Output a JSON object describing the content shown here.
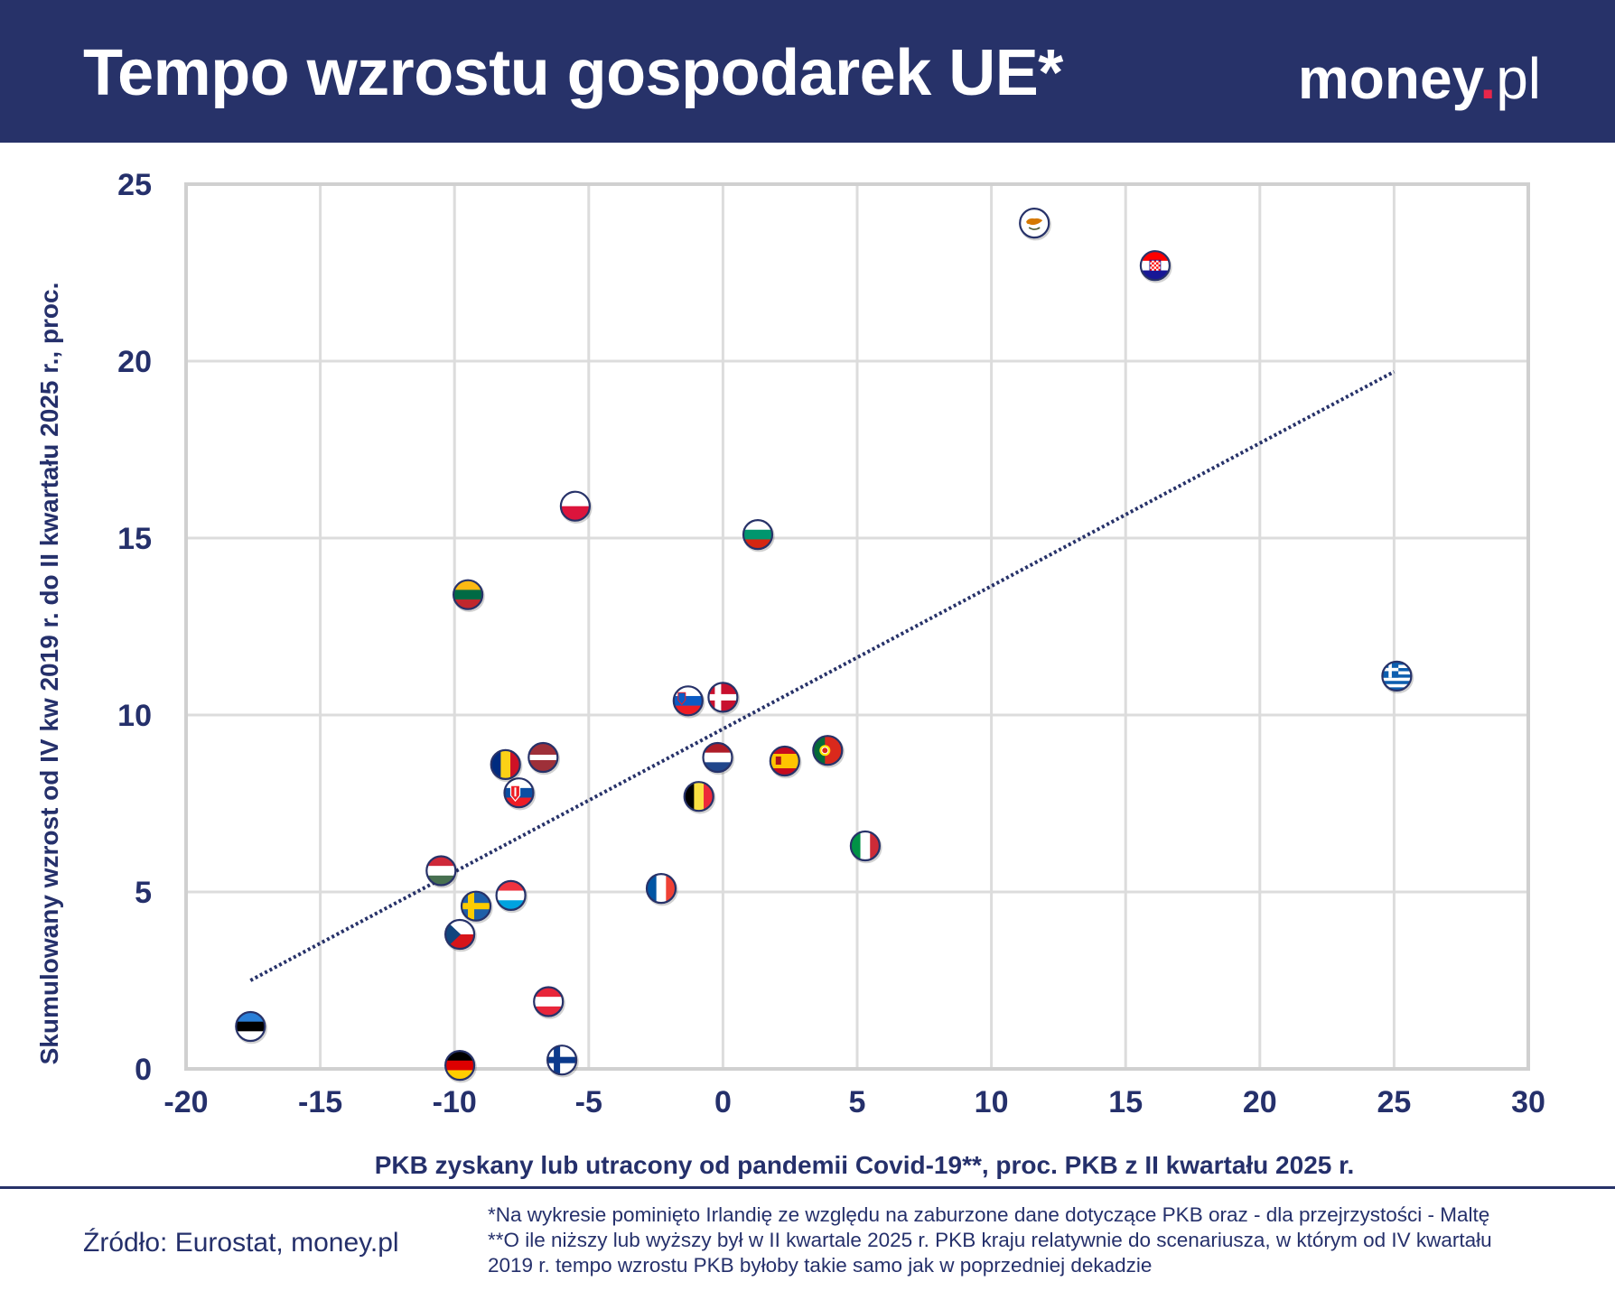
{
  "header": {
    "title": "Tempo wzrostu gospodarek UE*",
    "brand_main": "money",
    "brand_dot": ".",
    "brand_suffix": "pl"
  },
  "colors": {
    "navy": "#273269",
    "text": "#25306b",
    "grid": "#dcdcdc",
    "brand_dot": "#e8264a"
  },
  "chart_data": {
    "type": "scatter",
    "title": "",
    "xlabel": "PKB zyskany lub utracony od pandemii Covid-19**, proc. PKB z II kwartału 2025 r.",
    "ylabel": "Skumulowany wzrost od IV kw 2019 r. do II kwartału 2025 r., proc.",
    "xlim": [
      -20,
      30
    ],
    "ylim": [
      0,
      25
    ],
    "x_ticks": [
      -20,
      -15,
      -10,
      -5,
      0,
      5,
      10,
      15,
      20,
      25,
      30
    ],
    "y_ticks": [
      0,
      5,
      10,
      15,
      20,
      25
    ],
    "x_tick_labels": [
      "-20",
      "-15",
      "-10",
      "-5",
      "0",
      "5",
      "10",
      "15",
      "20",
      "25",
      "30"
    ],
    "y_tick_labels": [
      "0",
      "5",
      "10",
      "15",
      "20",
      "25"
    ],
    "grid": true,
    "trendline": {
      "style": "dotted",
      "x": [
        -17.6,
        25.0
      ],
      "y": [
        2.5,
        19.7
      ]
    },
    "points": [
      {
        "flag": "estonia-flag",
        "x": -17.6,
        "y": 1.2
      },
      {
        "flag": "germany-flag",
        "x": -9.8,
        "y": 0.1
      },
      {
        "flag": "finland-flag",
        "x": -6.0,
        "y": 0.25
      },
      {
        "flag": "austria-flag",
        "x": -6.5,
        "y": 1.9
      },
      {
        "flag": "czechia-flag",
        "x": -9.8,
        "y": 3.8
      },
      {
        "flag": "sweden-flag",
        "x": -9.2,
        "y": 4.6
      },
      {
        "flag": "luxembourg-flag",
        "x": -7.9,
        "y": 4.9
      },
      {
        "flag": "hungary-flag",
        "x": -10.5,
        "y": 5.6
      },
      {
        "flag": "slovakia-flag",
        "x": -7.6,
        "y": 7.8
      },
      {
        "flag": "romania-flag",
        "x": -8.1,
        "y": 8.6
      },
      {
        "flag": "latvia-flag",
        "x": -6.7,
        "y": 8.8
      },
      {
        "flag": "france-flag",
        "x": -2.3,
        "y": 5.1
      },
      {
        "flag": "belgium-flag",
        "x": -0.9,
        "y": 7.7
      },
      {
        "flag": "netherlands-flag",
        "x": -0.2,
        "y": 8.8
      },
      {
        "flag": "slovenia-flag",
        "x": -1.3,
        "y": 10.4
      },
      {
        "flag": "denmark-flag",
        "x": 0.0,
        "y": 10.5
      },
      {
        "flag": "spain-flag",
        "x": 2.3,
        "y": 8.7
      },
      {
        "flag": "portugal-flag",
        "x": 3.9,
        "y": 9.0
      },
      {
        "flag": "italy-flag",
        "x": 5.3,
        "y": 6.3
      },
      {
        "flag": "lithuania-flag",
        "x": -9.5,
        "y": 13.4
      },
      {
        "flag": "poland-flag",
        "x": -5.5,
        "y": 15.9
      },
      {
        "flag": "bulgaria-flag",
        "x": 1.3,
        "y": 15.1
      },
      {
        "flag": "cyprus-flag",
        "x": 11.6,
        "y": 23.9
      },
      {
        "flag": "croatia-flag",
        "x": 16.1,
        "y": 22.7
      },
      {
        "flag": "greece-flag",
        "x": 25.1,
        "y": 11.1
      }
    ]
  },
  "footer": {
    "source": "Źródło: Eurostat, money.pl",
    "note1": "*Na wykresie pominięto Irlandię ze względu na zaburzone dane dotyczące PKB oraz - dla przejrzystości - Maltę",
    "note2": "**O ile niższy lub wyższy był w II kwartale 2025 r. PKB kraju relatywnie do scenariusza, w którym od IV kwartału",
    "note3": "2019 r. tempo wzrostu PKB byłoby takie samo jak w poprzedniej dekadzie"
  }
}
